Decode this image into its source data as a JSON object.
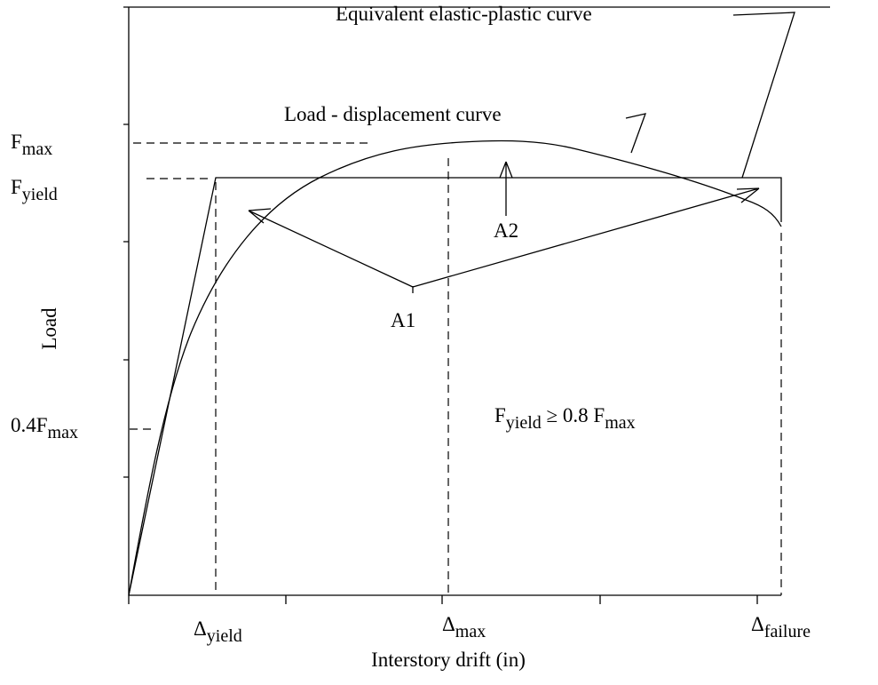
{
  "y_axis_label": "Load",
  "x_axis_label": "Interstory drift (in)",
  "y_labels": {
    "f_max": {
      "main": "F",
      "sub": "max"
    },
    "f_yield": {
      "main": "F",
      "sub": "yield"
    },
    "f_04max": {
      "main": "0.4F",
      "sub": "max"
    }
  },
  "x_labels": {
    "d_yield": {
      "main": "Δ",
      "sub": "yield"
    },
    "d_max": {
      "main": "Δ",
      "sub": "max"
    },
    "d_failure": {
      "main": "Δ",
      "sub": "failure"
    }
  },
  "annotations": {
    "equivalent": "Equivalent elastic-plastic curve",
    "load_disp": "Load - displacement curve",
    "a1": "A1",
    "a2": "A2",
    "criterion": {
      "f": "F",
      "yield": "yield",
      "mid": " ≥ 0.8 F",
      "max": "max"
    }
  }
}
